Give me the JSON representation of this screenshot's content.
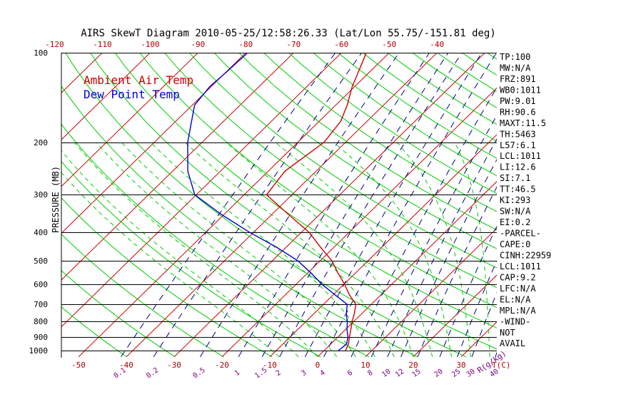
{
  "title": "AIRS SkewT Diagram 2010-05-25/12:58:26.33 (Lat/Lon 55.75/-151.81 deg)",
  "chart_data": {
    "type": "line",
    "title": "AIRS SkewT Diagram 2010-05-25/12:58:26.33 (Lat/Lon 55.75/-151.81 deg)",
    "ylabel": "PRESSURE (MB)",
    "xlabel": "T(C)",
    "mixing_ratio_label": "R(g/kg)",
    "ylim": [
      1050,
      100
    ],
    "pressure_levels": [
      100,
      200,
      300,
      400,
      500,
      600,
      700,
      800,
      900,
      1000
    ],
    "y_tick_labels": [
      "100",
      "200",
      "300",
      "400",
      "500",
      "600",
      "700",
      "800",
      "900",
      "1000"
    ],
    "bottom_temp_ticks": [
      -50,
      -40,
      -30,
      -20,
      -10,
      0,
      10,
      20,
      30
    ],
    "bottom_tick_labels": [
      "-50",
      "-40",
      "-30",
      "-20",
      "-10",
      "0",
      "10",
      "20",
      "30"
    ],
    "top_temp_ticks": [
      -120,
      -110,
      -100,
      -90,
      -80,
      -70,
      -60,
      -50,
      -40
    ],
    "top_tick_labels": [
      "-120",
      "-110",
      "-100",
      "-90",
      "-80",
      "-70",
      "-60",
      "-50",
      "-40"
    ],
    "mixing_ratios": [
      0.1,
      0.2,
      0.5,
      1,
      1.5,
      2,
      3,
      4,
      6,
      8,
      10,
      12,
      15,
      20,
      25,
      30,
      40
    ],
    "mixing_ratio_labels": [
      "0.1",
      "0.2",
      "0.5",
      "1",
      "1.5",
      "2",
      "3",
      "4",
      "6",
      "8",
      "10",
      "12",
      "15",
      "20",
      "25",
      "30",
      "40"
    ],
    "grid": true,
    "legend_position": "top-left",
    "colors": {
      "isotherm": "#cc0000",
      "dry_adiabat": "#00cc00",
      "moist_adiabat": "#00cc00",
      "mixing_ratio": "#000080",
      "tick_labels": "#aa0000",
      "mixing_labels": "#800080"
    },
    "series": [
      {
        "name": "Ambient Air Temp",
        "color": "#cc0000",
        "points": [
          {
            "p": 1000,
            "t": 4.5
          },
          {
            "p": 950,
            "t": 3.7
          },
          {
            "p": 900,
            "t": 2.4
          },
          {
            "p": 850,
            "t": 1.1
          },
          {
            "p": 800,
            "t": -0.3
          },
          {
            "p": 750,
            "t": -1.6
          },
          {
            "p": 700,
            "t": -3.2
          },
          {
            "p": 650,
            "t": -6.6
          },
          {
            "p": 600,
            "t": -9.8
          },
          {
            "p": 550,
            "t": -13.6
          },
          {
            "p": 500,
            "t": -17.5
          },
          {
            "p": 450,
            "t": -22.8
          },
          {
            "p": 400,
            "t": -28.5
          },
          {
            "p": 350,
            "t": -36.4
          },
          {
            "p": 300,
            "t": -45.3
          },
          {
            "p": 250,
            "t": -46.5
          },
          {
            "p": 200,
            "t": -44.5
          },
          {
            "p": 170,
            "t": -45.5
          },
          {
            "p": 150,
            "t": -47.6
          },
          {
            "p": 130,
            "t": -50.5
          },
          {
            "p": 115,
            "t": -52.5
          },
          {
            "p": 100,
            "t": -54.8
          }
        ]
      },
      {
        "name": "Dew Point Temp",
        "color": "#0000cc",
        "points": [
          {
            "p": 1000,
            "t": 3.0
          },
          {
            "p": 950,
            "t": 3.3
          },
          {
            "p": 900,
            "t": 2.1
          },
          {
            "p": 850,
            "t": 0.3
          },
          {
            "p": 800,
            "t": -1.3
          },
          {
            "p": 750,
            "t": -3.3
          },
          {
            "p": 700,
            "t": -5.0
          },
          {
            "p": 650,
            "t": -9.6
          },
          {
            "p": 600,
            "t": -14.5
          },
          {
            "p": 550,
            "t": -19.2
          },
          {
            "p": 500,
            "t": -24.6
          },
          {
            "p": 450,
            "t": -32.0
          },
          {
            "p": 400,
            "t": -41.0
          },
          {
            "p": 350,
            "t": -50.4
          },
          {
            "p": 300,
            "t": -60.3
          },
          {
            "p": 250,
            "t": -66.8
          },
          {
            "p": 200,
            "t": -73.0
          },
          {
            "p": 150,
            "t": -79.5
          },
          {
            "p": 130,
            "t": -80.3
          },
          {
            "p": 115,
            "t": -79.9
          },
          {
            "p": 100,
            "t": -79.6
          }
        ]
      }
    ],
    "stats": [
      "TP:100",
      "MW:N/A",
      "FRZ:891",
      "WB0:1011",
      "PW:9.01",
      "RH:90.6",
      "MAXT:11.5",
      "TH:5463",
      "L57:6.1",
      "LCL:1011",
      "LI:12.6",
      "SI:7.1",
      "TT:46.5",
      "KI:293",
      "SW:N/A",
      "EI:0.2",
      "-PARCEL-",
      "CAPE:0",
      "CINH:22959",
      "LCL:1011",
      "CAP:9.2",
      "LFC:N/A",
      "EL:N/A",
      "MPL:N/A",
      "-WIND-",
      "NOT",
      "AVAIL"
    ]
  }
}
